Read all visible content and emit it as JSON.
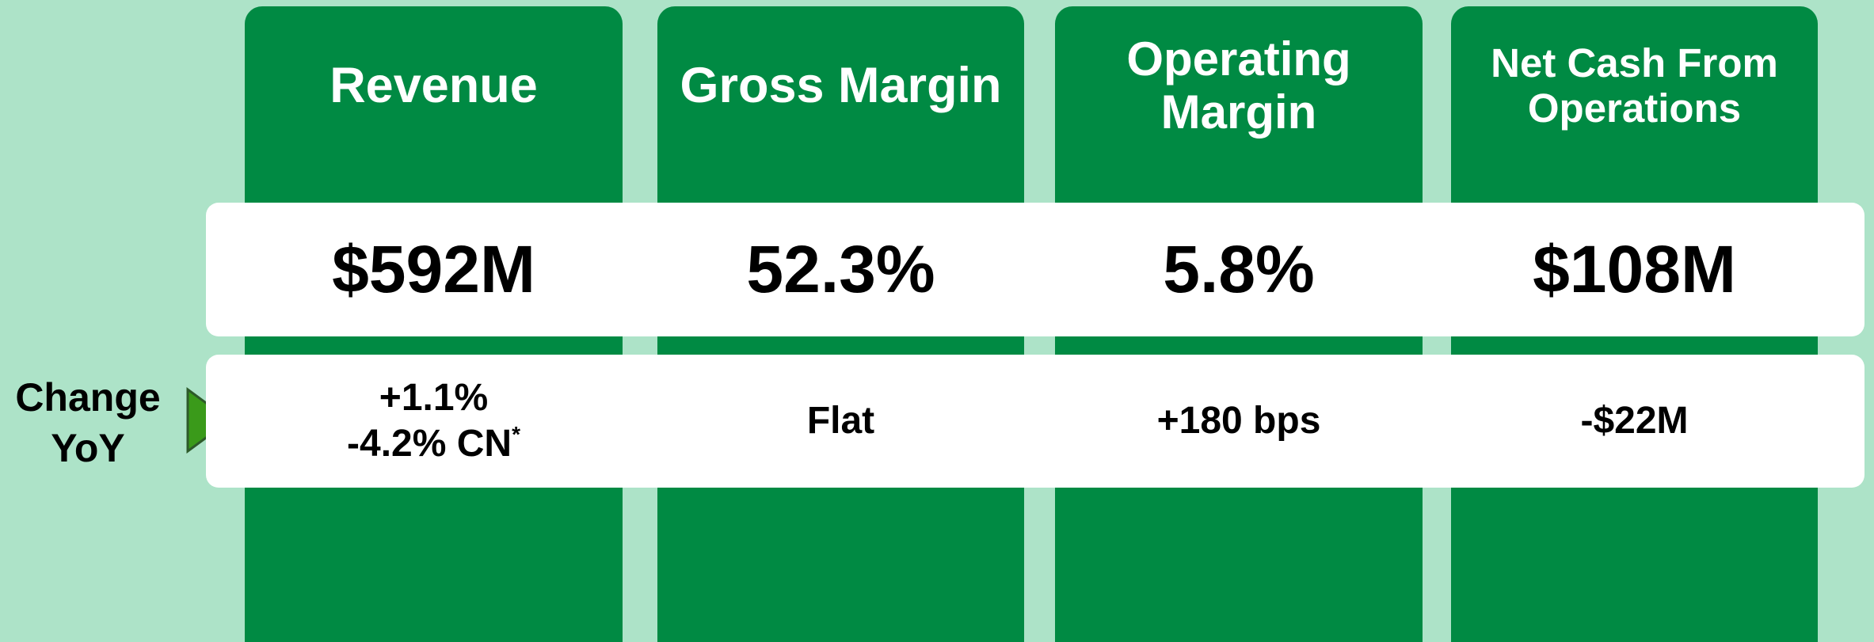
{
  "label": {
    "lines": [
      "Change",
      "YoY"
    ]
  },
  "cards": [
    {
      "title": [
        "Revenue"
      ],
      "value": "$592M",
      "change": [
        "+1.1%",
        "-4.2% CN"
      ],
      "footnote_mark": "*"
    },
    {
      "title": [
        "Gross Margin"
      ],
      "value": "52.3%",
      "change": [
        "Flat"
      ]
    },
    {
      "title": [
        "Operating",
        "Margin"
      ],
      "value": "5.8%",
      "change": [
        "+180 bps"
      ]
    },
    {
      "title": [
        "Net Cash From",
        "Operations"
      ],
      "value": "$108M",
      "change": [
        "-$22M"
      ]
    }
  ]
}
